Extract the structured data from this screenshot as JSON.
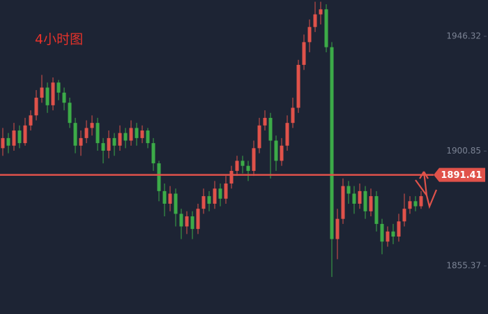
{
  "chart_data": {
    "type": "candlestick",
    "title": "4小时图",
    "open": [
      1902,
      1906,
      1903,
      1909,
      1904,
      1911,
      1915,
      1922,
      1926,
      1919,
      1928,
      1924,
      1920,
      1912,
      1903,
      1906,
      1910,
      1912,
      1904,
      1901,
      1906,
      1903,
      1908,
      1905,
      1910,
      1906,
      1909,
      1904,
      1896,
      1885,
      1880,
      1884,
      1876,
      1871,
      1875,
      1870,
      1878,
      1883,
      1880,
      1886,
      1882,
      1888,
      1893,
      1897,
      1895,
      1893,
      1902,
      1911,
      1914,
      1905,
      1897,
      1903,
      1912,
      1918,
      1935,
      1944,
      1950,
      1955,
      1957,
      1942,
      1866,
      1874,
      1887,
      1884,
      1880,
      1885,
      1877,
      1883,
      1872,
      1865,
      1869,
      1867,
      1873,
      1878,
      1881,
      1879
    ],
    "high": [
      1910,
      1908,
      1912,
      1911,
      1914,
      1917,
      1925,
      1931,
      1928,
      1930,
      1929,
      1926,
      1922,
      1914,
      1909,
      1913,
      1915,
      1914,
      1906,
      1909,
      1908,
      1911,
      1910,
      1913,
      1912,
      1911,
      1910,
      1906,
      1897,
      1888,
      1887,
      1886,
      1878,
      1877,
      1877,
      1880,
      1886,
      1885,
      1889,
      1888,
      1891,
      1895,
      1899,
      1899,
      1897,
      1905,
      1914,
      1917,
      1916,
      1907,
      1906,
      1915,
      1922,
      1937,
      1947,
      1953,
      1960,
      1960,
      1959,
      1944,
      1878,
      1890,
      1889,
      1887,
      1888,
      1887,
      1886,
      1885,
      1874,
      1871,
      1872,
      1876,
      1884,
      1883,
      1883,
      1885
    ],
    "low": [
      1899,
      1900,
      1901,
      1902,
      1903,
      1909,
      1913,
      1920,
      1916,
      1917,
      1921,
      1917,
      1910,
      1900,
      1899,
      1904,
      1907,
      1901,
      1896,
      1898,
      1899,
      1901,
      1902,
      1903,
      1903,
      1904,
      1902,
      1893,
      1881,
      1875,
      1877,
      1871,
      1866,
      1868,
      1866,
      1868,
      1876,
      1877,
      1878,
      1879,
      1880,
      1886,
      1891,
      1892,
      1889,
      1891,
      1900,
      1909,
      1890,
      1893,
      1895,
      1901,
      1910,
      1916,
      1933,
      1940,
      1948,
      1951,
      1940,
      1851,
      1858,
      1872,
      1880,
      1876,
      1878,
      1874,
      1875,
      1869,
      1860,
      1863,
      1864,
      1865,
      1871,
      1876,
      1877,
      1878
    ],
    "close": [
      1906,
      1903,
      1909,
      1904,
      1911,
      1915,
      1922,
      1926,
      1919,
      1928,
      1924,
      1920,
      1912,
      1903,
      1906,
      1910,
      1912,
      1904,
      1901,
      1906,
      1903,
      1908,
      1905,
      1910,
      1906,
      1909,
      1904,
      1896,
      1885,
      1880,
      1884,
      1876,
      1871,
      1875,
      1870,
      1878,
      1883,
      1880,
      1886,
      1882,
      1888,
      1893,
      1897,
      1895,
      1893,
      1902,
      1911,
      1914,
      1905,
      1897,
      1903,
      1912,
      1918,
      1935,
      1944,
      1950,
      1955,
      1957,
      1942,
      1866,
      1874,
      1887,
      1884,
      1880,
      1885,
      1877,
      1883,
      1872,
      1865,
      1869,
      1867,
      1873,
      1878,
      1881,
      1879,
      1883
    ],
    "up_color": "#e0524a",
    "down_color": "#3cab48",
    "ylim": [
      1836.32,
      1960.69
    ],
    "yticks": [
      1946.32,
      1900.85,
      1855.37
    ],
    "current_price": 1891.41,
    "current_price_color": "#e0524a"
  }
}
